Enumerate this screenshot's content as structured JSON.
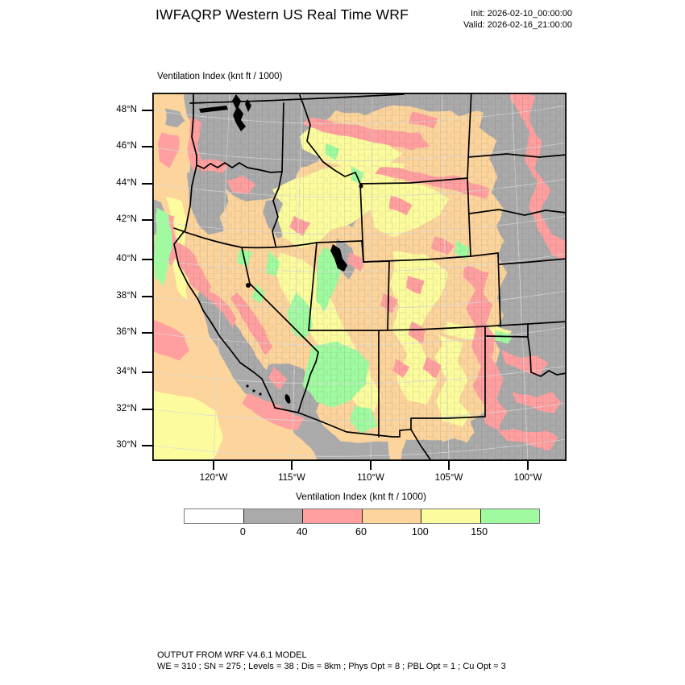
{
  "header": {
    "title": "IWFAQRP Western US Real Time WRF",
    "init_line": "Init: 2026-02-10_00:00:00",
    "valid_line": "Valid: 2026-02-16_21:00:00"
  },
  "map": {
    "field_label": "Ventilation Index   (knt ft / 1000)",
    "lat_ticks": [
      "48°N",
      "46°N",
      "44°N",
      "42°N",
      "40°N",
      "38°N",
      "36°N",
      "34°N",
      "32°N",
      "30°N"
    ],
    "lon_ticks": [
      "120°W",
      "115°W",
      "110°W",
      "105°W",
      "100°W"
    ]
  },
  "chart_data": {
    "type": "heatmap",
    "subtype": "filled-contour-weather-map",
    "variable": "Ventilation Index",
    "units": "knt ft / 1000",
    "region": "Western US",
    "lat_range": [
      "30°N",
      "48°N"
    ],
    "lon_range": [
      "120°W",
      "100°W"
    ],
    "colorbar": {
      "title": "Ventilation Index  (knt ft / 1000)",
      "boundary_labels": [
        "0",
        "40",
        "60",
        "100",
        "150"
      ],
      "colors": [
        "#ffffff",
        "#aaaaaa",
        "#ff9f9f",
        "#fcd49c",
        "#fcfc9e",
        "#a0fba0"
      ],
      "bins": [
        {
          "range": "below 0",
          "color": "#ffffff"
        },
        {
          "range": "0-40",
          "color": "#aaaaaa"
        },
        {
          "range": "40-60",
          "color": "#ff9f9f"
        },
        {
          "range": "60-100",
          "color": "#fcd49c"
        },
        {
          "range": "100-150",
          "color": "#fcfc9e"
        },
        {
          "range": "above 150",
          "color": "#a0fba0"
        }
      ]
    },
    "map_features": {
      "state_border_color": "#000000",
      "county_border_color": "#444444",
      "water_bodies": [
        "Puget Sound",
        "Great Salt Lake",
        "Lake Tahoe",
        "Salton Sea"
      ]
    }
  },
  "footer": {
    "line1": "OUTPUT FROM WRF V4.6.1 MODEL",
    "line2": "WE = 310 ; SN = 275 ; Levels = 38 ; Dis = 8km ; Phys Opt = 8 ; PBL Opt = 1 ; Cu Opt = 3"
  }
}
